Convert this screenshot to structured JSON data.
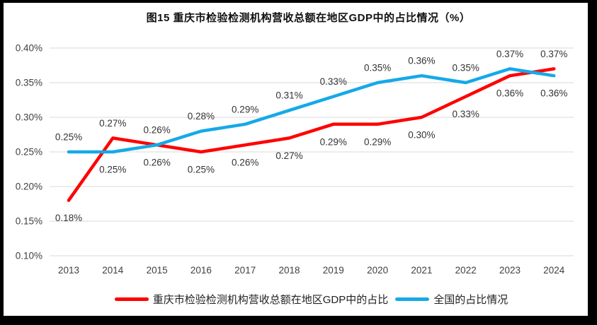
{
  "chart_data": {
    "type": "line",
    "title": "图15 重庆市检验检测机构营收总额在地区GDP中的占比情况（%）",
    "categories": [
      "2013",
      "2014",
      "2015",
      "2016",
      "2017",
      "2018",
      "2019",
      "2020",
      "2021",
      "2022",
      "2023",
      "2024"
    ],
    "y_ticks": [
      "0.40%",
      "0.35%",
      "0.30%",
      "0.25%",
      "0.20%",
      "0.15%",
      "0.10%"
    ],
    "ylim_percent": [
      0.1,
      0.4
    ],
    "grid": true,
    "legend_position": "bottom",
    "series": [
      {
        "id": "chongqing",
        "name": "重庆市检验检测机构营收总额在地区GDP中的占比",
        "color": "#FE0000",
        "values": [
          0.18,
          0.27,
          0.26,
          0.25,
          0.26,
          0.27,
          0.29,
          0.29,
          0.3,
          0.33,
          0.36,
          0.37
        ],
        "labels": [
          "0.18%",
          "0.27%",
          "0.26%",
          "0.25%",
          "0.26%",
          "0.27%",
          "0.29%",
          "0.29%",
          "0.30%",
          "0.33%",
          "0.36%",
          "0.37%"
        ],
        "label_positions": [
          "below",
          "above",
          "above",
          "below",
          "below",
          "below",
          "below",
          "below",
          "below",
          "below",
          "below",
          "above"
        ]
      },
      {
        "id": "national",
        "name": "全国的占比情况",
        "color": "#15A9E8",
        "values": [
          0.25,
          0.25,
          0.26,
          0.28,
          0.29,
          0.31,
          0.33,
          0.35,
          0.36,
          0.35,
          0.37,
          0.36
        ],
        "labels": [
          "0.25%",
          "0.25%",
          "0.26%",
          "0.28%",
          "0.29%",
          "0.31%",
          "0.33%",
          "0.35%",
          "0.36%",
          "0.35%",
          "0.37%",
          "0.36%"
        ],
        "label_positions": [
          "above",
          "below",
          "below",
          "above",
          "above",
          "above",
          "above",
          "above",
          "above",
          "above",
          "above",
          "below"
        ]
      }
    ]
  },
  "colors": {
    "gridline": "#D9D9D9",
    "axis_text": "#404040",
    "label_text": "#333333",
    "frame_border": "#000000",
    "background": "#FFFFFF"
  }
}
